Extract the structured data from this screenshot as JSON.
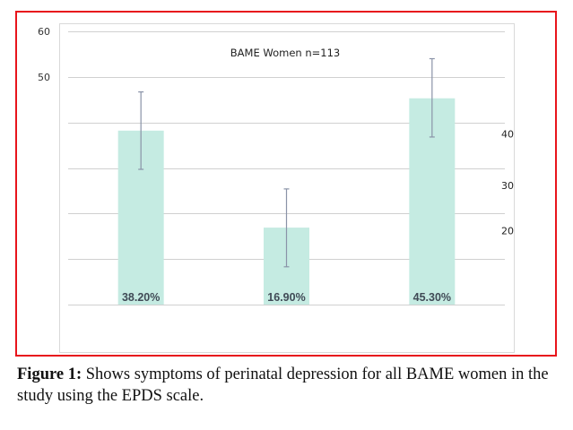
{
  "chart_data": {
    "type": "bar",
    "title": "BAME Women n=113",
    "xlabel": "",
    "ylabel": "",
    "categories": [
      "",
      "",
      ""
    ],
    "values": [
      38.2,
      16.9,
      45.3
    ],
    "data_labels": [
      "38.20%",
      "16.90%",
      "45.30%"
    ],
    "error_bars": [
      {
        "low": 29.7,
        "high": 46.7
      },
      {
        "low": 8.3,
        "high": 25.4
      },
      {
        "low": 36.8,
        "high": 54.0
      }
    ],
    "ylim": [
      0,
      60
    ],
    "gridlines_at": [
      0,
      10,
      20,
      30,
      40,
      50,
      60
    ],
    "grid": true,
    "left_tick_labels": [
      {
        "value": 60,
        "label": "60"
      },
      {
        "value": 50,
        "label": "50"
      }
    ],
    "right_tick_labels": [
      {
        "value": 37.5,
        "label": "40"
      },
      {
        "value": 26.2,
        "label": "30"
      },
      {
        "value": 16.2,
        "label": "20"
      }
    ],
    "bar_color": "#c5ebe2",
    "error_bar_color": "#8a93a8",
    "gridline_color": "#d0d0d0",
    "legend": "none"
  },
  "figure": {
    "border_color": "#e8141c",
    "caption_label": "Figure 1:",
    "caption_text": " Shows symptoms of perinatal depression for all BAME women in the study using the EPDS scale."
  }
}
